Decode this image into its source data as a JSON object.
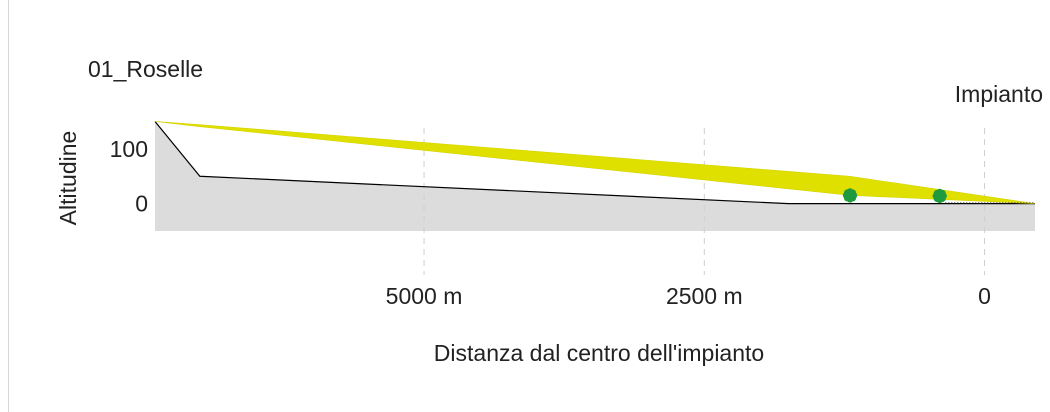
{
  "chart_data": {
    "type": "area",
    "title": "01_Roselle",
    "xlabel": "Distanza dal centro dell'impianto",
    "ylabel": "Altitudine",
    "x_reversed": true,
    "xlim": [
      7400,
      -450
    ],
    "ylim": [
      -50,
      160
    ],
    "x_ticks": [
      {
        "value": 5000,
        "label": "5000 m"
      },
      {
        "value": 2500,
        "label": "2500 m"
      },
      {
        "value": 0,
        "label": "0"
      }
    ],
    "y_ticks": [
      {
        "value": 100,
        "label": "100"
      },
      {
        "value": 0,
        "label": "0"
      }
    ],
    "vertical_gridlines": [
      5000,
      2500,
      0
    ],
    "terrain": {
      "color": "#dcdcdc",
      "line_color": "#000000",
      "x": [
        7400,
        7000,
        1750,
        -450
      ],
      "y": [
        150,
        50,
        0,
        0
      ]
    },
    "visibility_band": {
      "color": "#e0e000",
      "top": {
        "x": [
          7400,
          -450
        ],
        "y": [
          150,
          0
        ]
      },
      "bottom": {
        "x": [
          7400,
          -450
        ],
        "y": [
          150,
          0
        ]
      },
      "spread_at_x": [
        {
          "x": 1200,
          "height": 18
        },
        {
          "x": 7000,
          "height": 2
        }
      ]
    },
    "trees": {
      "color": "#1f9a3e",
      "x": [
        1200,
        400
      ],
      "y": [
        15,
        14
      ]
    },
    "annotation": {
      "text": "Impianto",
      "x": 0
    }
  }
}
